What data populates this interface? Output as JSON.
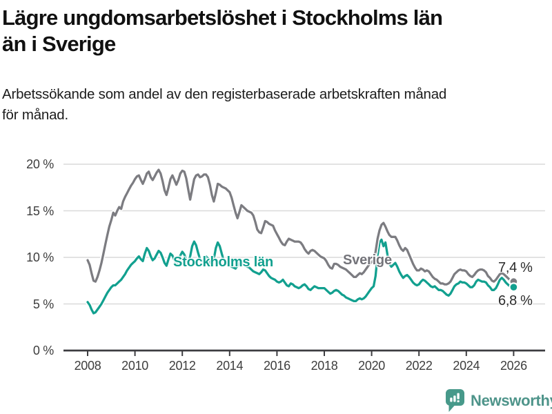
{
  "header": {
    "title_lines": [
      "Lägre ungdomsarbetslöshet i Stockholms län",
      "än i Sverige"
    ],
    "subtitle_lines": [
      "Arbetssökande som andel av den registerbaserade arbetskraften månad",
      "för månad."
    ]
  },
  "chart_data": {
    "type": "line",
    "unit": "%",
    "x_start_year": 2008,
    "x_step_months": 1,
    "x_axis_tick_values": [
      2008,
      2010,
      2012,
      2014,
      2016,
      2018,
      2020,
      2022,
      2024,
      2026
    ],
    "x_axis_tick_labels": [
      "2008",
      "2010",
      "2012",
      "2014",
      "2016",
      "2018",
      "2020",
      "2022",
      "2024",
      "2026"
    ],
    "y_axis_tick_values": [
      0,
      5,
      10,
      15,
      20
    ],
    "y_axis_tick_labels": [
      "0 %",
      "5 %",
      "10 %",
      "15 %",
      "20 %"
    ],
    "ylim": [
      0,
      21.5
    ],
    "xlim": [
      2007,
      2027.3
    ],
    "grid": true,
    "legend_position": "inline-labels",
    "series": [
      {
        "name": "Sverige",
        "color": "#7c7c81",
        "label_color": "#74747a",
        "end_label": "7,4 %",
        "end_value": 7.4,
        "values": [
          9.7,
          9.2,
          8.3,
          7.5,
          7.4,
          7.9,
          8.6,
          9.4,
          10.4,
          11.4,
          12.4,
          13.3,
          14.0,
          14.8,
          14.5,
          15.0,
          15.4,
          15.2,
          16.0,
          16.5,
          16.9,
          17.3,
          17.7,
          18.0,
          18.4,
          18.7,
          18.8,
          18.3,
          17.9,
          18.4,
          19.0,
          19.2,
          18.6,
          18.3,
          18.7,
          19.1,
          19.4,
          19.0,
          18.2,
          17.2,
          16.7,
          17.5,
          18.4,
          18.8,
          18.3,
          17.8,
          18.3,
          19.0,
          19.3,
          19.2,
          18.5,
          17.3,
          16.2,
          17.3,
          18.4,
          18.8,
          18.9,
          18.6,
          18.7,
          18.9,
          18.9,
          18.6,
          17.8,
          16.7,
          16.0,
          16.9,
          17.9,
          17.8,
          17.6,
          17.5,
          17.4,
          17.2,
          17.0,
          16.4,
          15.6,
          14.8,
          14.2,
          14.9,
          15.6,
          15.4,
          15.2,
          15.0,
          14.9,
          14.8,
          14.5,
          13.8,
          13.0,
          12.7,
          12.6,
          13.2,
          13.9,
          13.8,
          13.6,
          13.5,
          13.4,
          12.9,
          12.5,
          12.1,
          11.7,
          11.4,
          11.3,
          11.7,
          12.0,
          11.9,
          11.8,
          11.7,
          11.7,
          11.7,
          11.6,
          11.3,
          10.9,
          10.6,
          10.4,
          10.7,
          10.8,
          10.7,
          10.5,
          10.3,
          10.1,
          10.0,
          9.9,
          9.6,
          9.2,
          8.9,
          8.8,
          9.3,
          9.3,
          9.2,
          9.0,
          8.9,
          8.8,
          8.7,
          8.5,
          8.3,
          8.1,
          7.9,
          7.9,
          8.1,
          8.3,
          8.2,
          8.4,
          8.7,
          9.0,
          9.3,
          9.5,
          9.7,
          10.6,
          12.0,
          12.9,
          13.5,
          13.7,
          13.3,
          12.8,
          12.4,
          12.2,
          12.2,
          12.2,
          11.8,
          11.3,
          10.9,
          10.7,
          11.0,
          10.8,
          10.3,
          9.8,
          9.3,
          8.9,
          8.6,
          8.6,
          8.8,
          8.7,
          8.5,
          8.6,
          8.5,
          8.2,
          7.9,
          7.7,
          7.6,
          7.4,
          7.2,
          7.2,
          7.1,
          7.1,
          7.2,
          7.4,
          7.8,
          8.2,
          8.4,
          8.6,
          8.7,
          8.6,
          8.6,
          8.5,
          8.2,
          8.0,
          7.9,
          8.1,
          8.4,
          8.6,
          8.7,
          8.7,
          8.6,
          8.4,
          8.0,
          7.8,
          7.5,
          7.4,
          7.6,
          7.9,
          8.2,
          8.3,
          8.2,
          8.0,
          7.8,
          7.6,
          7.5,
          7.4
        ]
      },
      {
        "name": "Stockholms län",
        "color": "#12a08f",
        "label_color": "#12a08f",
        "end_label": "6,8 %",
        "end_value": 6.8,
        "values": [
          5.2,
          4.9,
          4.4,
          4.0,
          4.1,
          4.4,
          4.7,
          5.0,
          5.4,
          5.8,
          6.2,
          6.5,
          6.8,
          7.0,
          7.0,
          7.2,
          7.4,
          7.6,
          7.9,
          8.2,
          8.6,
          8.9,
          9.2,
          9.4,
          9.6,
          9.9,
          10.1,
          9.8,
          9.6,
          10.4,
          11.0,
          10.7,
          10.1,
          9.7,
          9.9,
          10.3,
          10.7,
          10.5,
          10.0,
          9.4,
          9.1,
          9.8,
          10.4,
          10.2,
          9.7,
          9.3,
          9.6,
          10.2,
          10.6,
          10.3,
          9.8,
          9.4,
          10.1,
          11.2,
          11.7,
          11.3,
          10.5,
          9.8,
          9.6,
          9.8,
          10.1,
          9.9,
          9.5,
          9.2,
          9.8,
          11.0,
          11.6,
          11.2,
          10.4,
          9.7,
          9.4,
          9.3,
          9.2,
          9.0,
          8.9,
          8.8,
          9.1,
          9.6,
          9.4,
          9.2,
          9.1,
          9.0,
          8.9,
          8.7,
          8.5,
          8.4,
          8.3,
          8.2,
          8.4,
          8.7,
          8.6,
          8.3,
          8.0,
          7.8,
          7.7,
          7.6,
          7.4,
          7.3,
          7.4,
          7.6,
          7.3,
          7.0,
          6.9,
          7.2,
          7.1,
          6.9,
          6.8,
          6.7,
          6.8,
          7.0,
          7.1,
          6.9,
          6.6,
          6.5,
          6.7,
          6.9,
          6.8,
          6.7,
          6.7,
          6.7,
          6.7,
          6.5,
          6.3,
          6.1,
          6.2,
          6.4,
          6.5,
          6.4,
          6.2,
          6.0,
          5.9,
          5.7,
          5.6,
          5.5,
          5.4,
          5.3,
          5.3,
          5.5,
          5.6,
          5.5,
          5.6,
          5.8,
          6.1,
          6.4,
          6.7,
          6.9,
          8.0,
          10.2,
          11.6,
          11.9,
          11.2,
          11.6,
          10.3,
          9.3,
          9.0,
          9.2,
          9.4,
          9.0,
          8.5,
          8.1,
          7.8,
          8.0,
          8.1,
          7.9,
          7.6,
          7.3,
          7.1,
          7.0,
          7.1,
          7.4,
          7.6,
          7.5,
          7.3,
          7.1,
          6.9,
          6.8,
          6.9,
          6.7,
          6.5,
          6.5,
          6.4,
          6.2,
          6.0,
          5.9,
          6.1,
          6.5,
          6.9,
          7.1,
          7.2,
          7.4,
          7.3,
          7.3,
          7.2,
          7.0,
          6.8,
          6.8,
          7.0,
          7.4,
          7.6,
          7.5,
          7.4,
          7.4,
          7.3,
          7.0,
          6.8,
          6.5,
          6.5,
          6.7,
          7.1,
          7.6,
          7.8,
          7.6,
          7.3,
          7.1,
          6.9,
          6.8,
          6.8
        ]
      }
    ]
  },
  "colors": {
    "accent_teal": "#12a08f",
    "line_gray": "#7c7c81",
    "grid": "#d9d9d9",
    "axis": "#3c3c40",
    "tick_text": "#3d3d3d",
    "logo_icon": "#47998a",
    "logo_text": "#4e948a"
  },
  "footer": {
    "brand": "Newsworthy",
    "logo_icon": "bar-chart-speech-bubble-icon"
  }
}
